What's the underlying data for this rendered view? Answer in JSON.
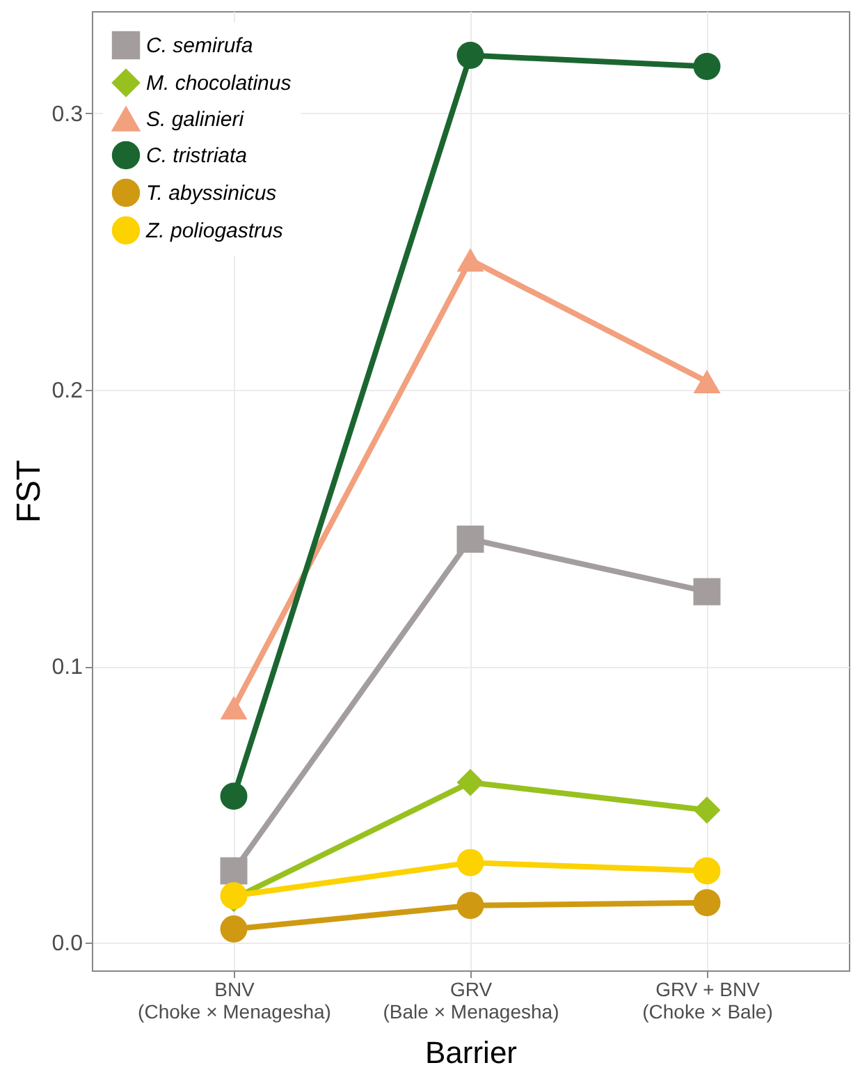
{
  "chart_data": {
    "type": "line",
    "xlabel": "Barrier",
    "ylabel": "FST",
    "categories": [
      "BNV\n(Choke × Menagesha)",
      "GRV\n(Bale × Menagesha)",
      "GRV + BNV\n(Choke × Bale)"
    ],
    "series": [
      {
        "name": "C. semirufa",
        "color": "#a39e9d",
        "marker": "square",
        "values": [
          0.026,
          0.146,
          0.127
        ]
      },
      {
        "name": "M. chocolatinus",
        "color": "#97c11f",
        "marker": "diamond",
        "values": [
          0.016,
          0.058,
          0.048
        ]
      },
      {
        "name": "S. galinieri",
        "color": "#f2a07e",
        "marker": "triangle",
        "values": [
          0.085,
          0.247,
          0.203
        ]
      },
      {
        "name": "C. tristriata",
        "color": "#1b6630",
        "marker": "circle",
        "values": [
          0.053,
          0.321,
          0.317
        ]
      },
      {
        "name": "T. abyssinicus",
        "color": "#cf9a12",
        "marker": "circle",
        "values": [
          0.005,
          0.0135,
          0.0145
        ]
      },
      {
        "name": "Z. poliogastrus",
        "color": "#fcd200",
        "marker": "circle",
        "values": [
          0.017,
          0.029,
          0.026
        ]
      }
    ],
    "ylim": [
      -0.01,
      0.337
    ],
    "yticks": [
      {
        "value": 0,
        "label": "0.0"
      },
      0.1,
      0.2,
      0.3
    ],
    "grid": true,
    "legend": "top left",
    "line_style": "solid"
  }
}
